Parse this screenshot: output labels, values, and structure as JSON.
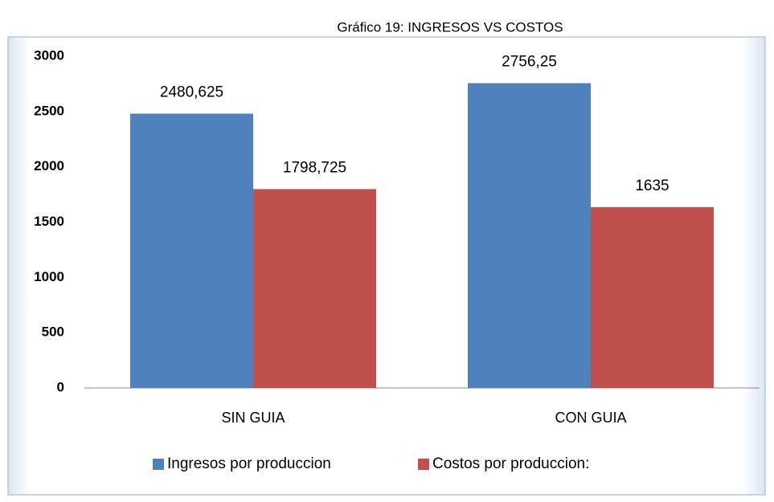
{
  "chart_data": {
    "type": "bar",
    "title": "Gráfico 19: INGRESOS VS COSTOS",
    "categories": [
      "SIN GUIA",
      "CON GUIA"
    ],
    "series": [
      {
        "name": "Ingresos por produccion",
        "color": "#4f81bd",
        "values": [
          2480.625,
          2756.25
        ],
        "value_labels": [
          "2480,625",
          "2756,25"
        ]
      },
      {
        "name": "Costos por produccion:",
        "color": "#c0504d",
        "values": [
          1798.725,
          1635
        ],
        "value_labels": [
          "1798,725",
          "1635"
        ]
      }
    ],
    "ylim": [
      0,
      3000
    ],
    "yticks": [
      0,
      500,
      1000,
      1500,
      2000,
      2500,
      3000
    ],
    "grid": false,
    "legend": "bottom"
  }
}
